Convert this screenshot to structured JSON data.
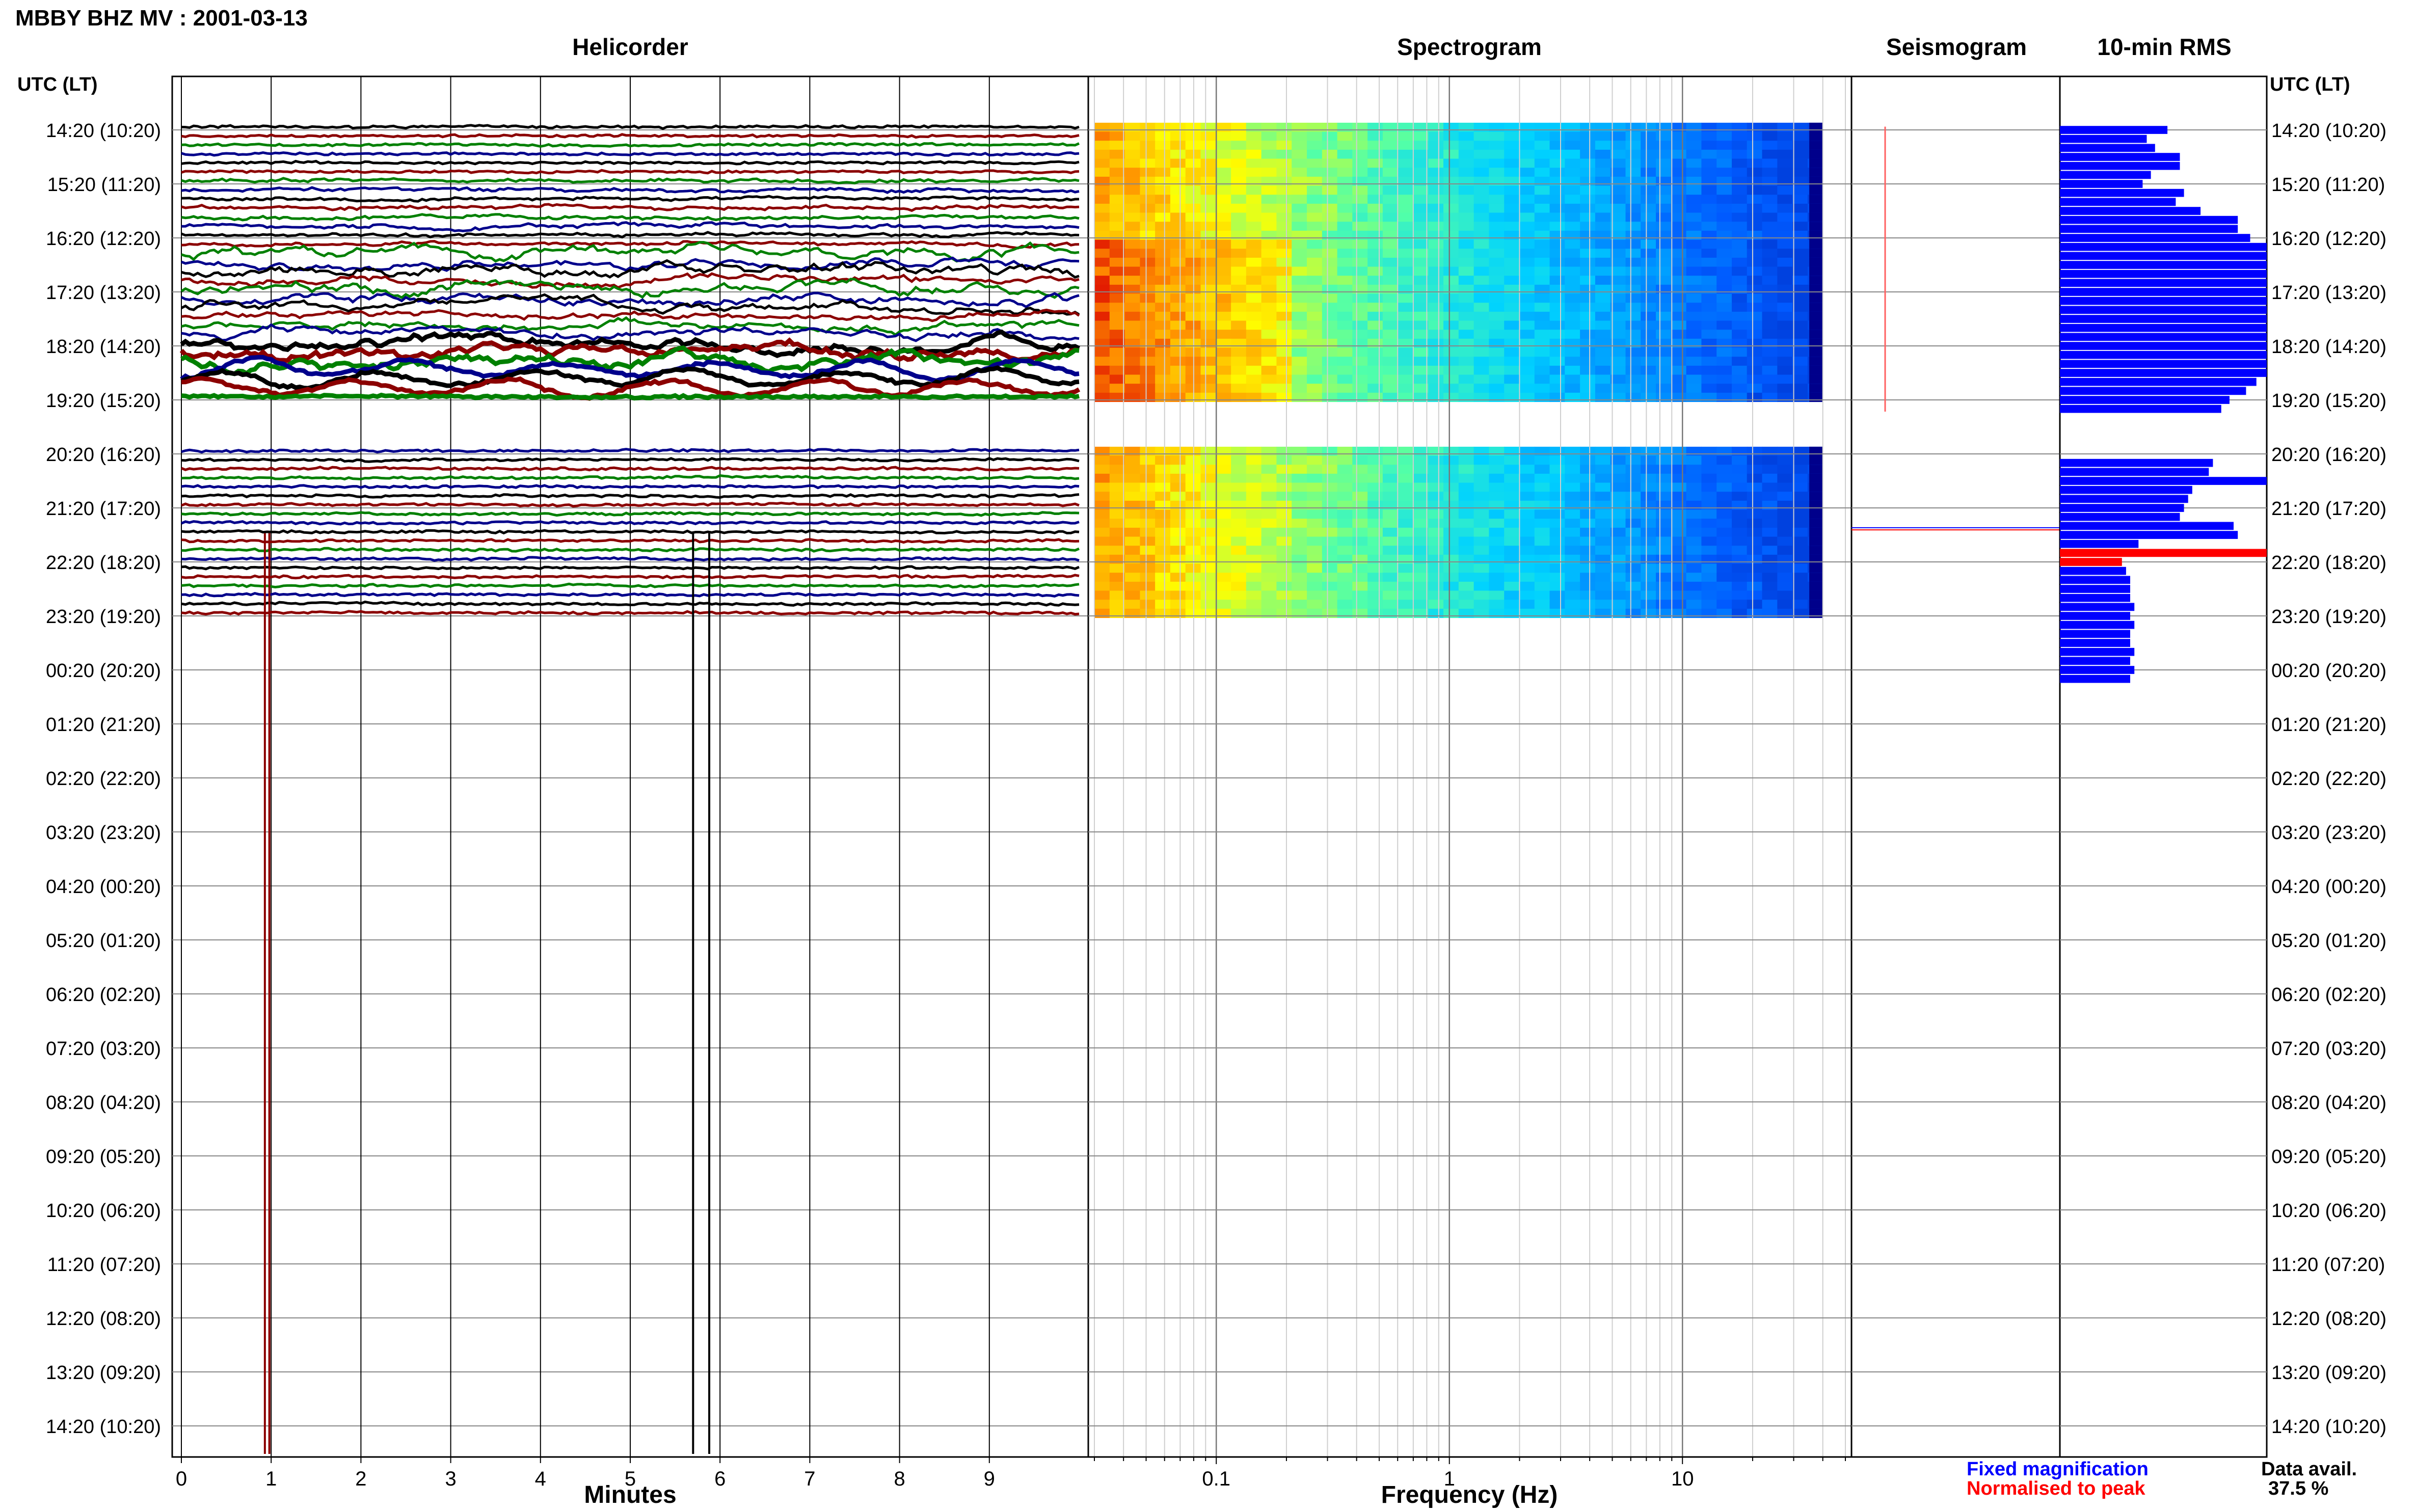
{
  "header": {
    "station_title": "MBBY BHZ MV : 2001-03-13",
    "utc_lt_label": "UTC (LT)",
    "utc_lt_label_right": "UTC (LT)"
  },
  "panels": {
    "helicorder_title": "Helicorder",
    "spectrogram_title": "Spectrogram",
    "seismogram_title": "Seismogram",
    "rms_title": "10-min RMS"
  },
  "time_labels": [
    "14:20 (10:20)",
    "15:20 (11:20)",
    "16:20 (12:20)",
    "17:20 (13:20)",
    "18:20 (14:20)",
    "19:20 (15:20)",
    "20:20 (16:20)",
    "21:20 (17:20)",
    "22:20 (18:20)",
    "23:20 (19:20)",
    "00:20 (20:20)",
    "01:20 (21:20)",
    "02:20 (22:20)",
    "03:20 (23:20)",
    "04:20 (00:20)",
    "05:20 (01:20)",
    "06:20 (02:20)",
    "07:20 (03:20)",
    "08:20 (04:20)",
    "09:20 (05:20)",
    "10:20 (06:20)",
    "11:20 (07:20)",
    "12:20 (08:20)",
    "13:20 (09:20)",
    "14:20 (10:20)"
  ],
  "footer": {
    "legend_fixed": "Fixed magnification",
    "legend_normalised": "Normalised to peak",
    "data_avail_label": "Data avail.",
    "data_avail_value": "37.5 %"
  },
  "colors": {
    "trace_cycle": [
      "#000000",
      "#8b0000",
      "#008000",
      "#00008b"
    ],
    "rms_bar": "#0000ff",
    "rms_peak": "#ff0000",
    "legend_fixed": "#0000ff",
    "legend_normalised": "#ff0000"
  },
  "chart_data": [
    {
      "type": "line",
      "title": "Helicorder",
      "xlabel": "Minutes",
      "ylabel": "UTC (LT)",
      "xlim": [
        0,
        10
      ],
      "x_ticks": [
        0,
        1,
        2,
        3,
        4,
        5,
        6,
        7,
        8,
        9
      ],
      "traces_per_hour": 6,
      "data_rows_hours": [
        [
          14.2,
          19.3
        ],
        [
          20.2,
          23.3
        ]
      ],
      "gap_hours": [
        19.3,
        20.2
      ],
      "grid": true
    },
    {
      "type": "heatmap",
      "title": "Spectrogram",
      "xlabel": "Frequency (Hz)",
      "x_scale": "log",
      "xlim": [
        0.03,
        50
      ],
      "x_ticks": [
        0.1,
        1,
        10
      ],
      "data_rows_hours": [
        [
          14.2,
          19.3
        ],
        [
          20.2,
          23.3
        ]
      ],
      "grid": true
    },
    {
      "type": "line",
      "title": "Seismogram",
      "grid": true
    },
    {
      "type": "bar",
      "title": "10-min RMS",
      "orientation": "horizontal",
      "bin_minutes": 10,
      "start_hour": 14.3333,
      "values": [
        0.52,
        0.42,
        0.46,
        0.58,
        0.58,
        0.44,
        0.4,
        0.6,
        0.56,
        0.68,
        0.86,
        0.86,
        0.92,
        1.0,
        1.0,
        1.0,
        1.0,
        1.0,
        1.0,
        1.0,
        1.0,
        1.0,
        1.0,
        1.0,
        1.0,
        1.0,
        1.0,
        1.0,
        0.95,
        0.9,
        0.82,
        0.78,
        0,
        0,
        0,
        0,
        0,
        0.74,
        0.72,
        1.0,
        0.64,
        0.62,
        0.6,
        0.58,
        0.84,
        0.86,
        0.38,
        1.0,
        0.3,
        0.32,
        0.34,
        0.34,
        0.34,
        0.36,
        0.34,
        0.36,
        0.34,
        0.34,
        0.36,
        0.34,
        0.36,
        0.34
      ],
      "peak_bins": [
        47,
        48
      ],
      "xlim": [
        0,
        1
      ]
    }
  ]
}
